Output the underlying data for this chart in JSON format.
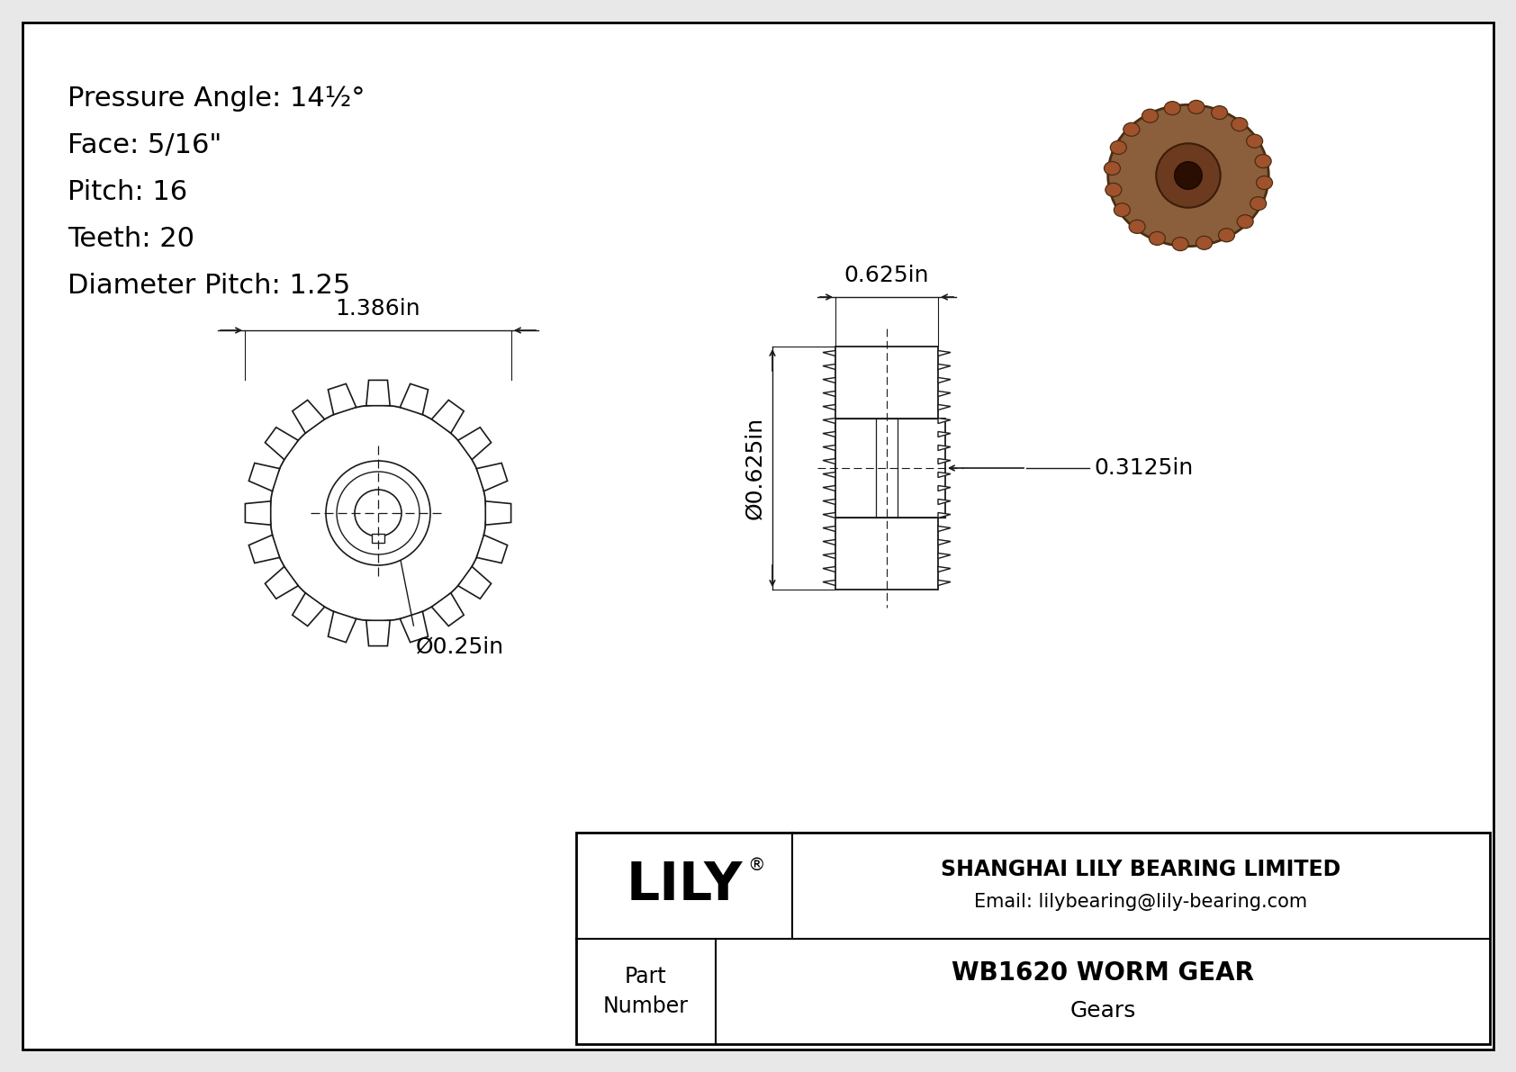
{
  "bg_color": "#e8e8e8",
  "white": "#ffffff",
  "black": "#000000",
  "line_color": "#1a1a1a",
  "gear_line_color": "#1a1a1a",
  "title_block": {
    "company": "SHANGHAI LILY BEARING LIMITED",
    "email": "Email: lilybearing@lily-bearing.com",
    "part_label": "Part\nNumber",
    "part_number": "WB1620 WORM GEAR",
    "category": "Gears",
    "lily_text": "LILY"
  },
  "specs": [
    "Pressure Angle: 14½°",
    "Face: 5/16\"",
    "Pitch: 16",
    "Teeth: 20",
    "Diameter Pitch: 1.25"
  ],
  "dims": {
    "front_diameter": "1.386in",
    "bore_diameter": "Ø0.25in",
    "side_top_width": "0.625in",
    "side_height": "Ø0.625in",
    "side_right_width": "0.3125in"
  }
}
